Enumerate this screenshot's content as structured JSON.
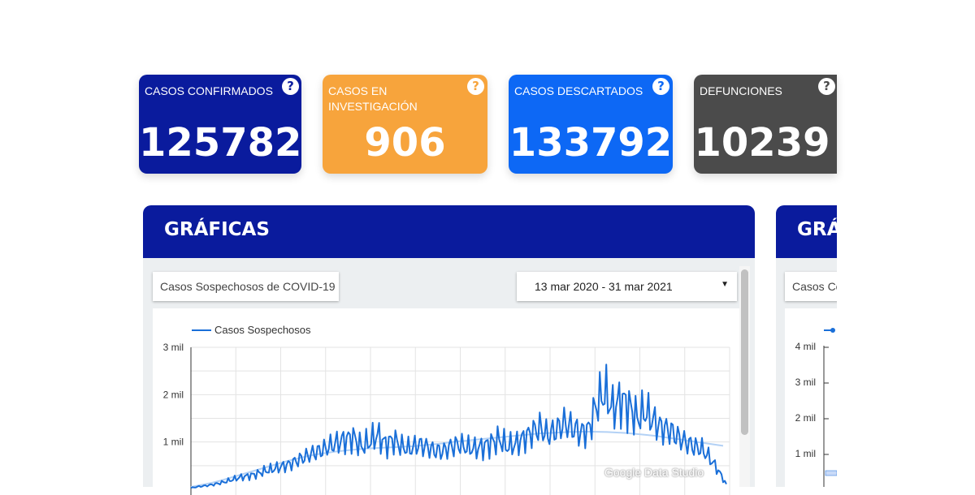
{
  "cards": [
    {
      "label": "CASOS CONFIRMADOS",
      "value": "125782",
      "color": "#0a1b9d",
      "help": "?"
    },
    {
      "label": "CASOS EN INVESTIGACIÓN",
      "value": "906",
      "color": "#f7a43c",
      "help": "?"
    },
    {
      "label": "CASOS DESCARTADOS",
      "value": "133792",
      "color": "#0d68f5",
      "help": "?"
    },
    {
      "label": "DEFUNCIONES",
      "value": "10239",
      "color": "#4b4b4b",
      "help": "?"
    }
  ],
  "panel1": {
    "title": "GRÁFICAS",
    "metric_selector": "Casos Sospechosos de COVID-19",
    "date_range": "13 mar 2020 - 31 mar 2021",
    "legend": "Casos Sospechosos",
    "watermark": "Google Data Studio",
    "series_color": "#1a6fd8"
  },
  "panel2": {
    "title": "GRÁ",
    "metric_selector": "Casos Co",
    "yticks": [
      "4 mil",
      "3 mil",
      "2 mil",
      "1 mil"
    ]
  },
  "chart_data": {
    "type": "line",
    "y_tick_labels": [
      "3 mil",
      "2 mil",
      "1 mil"
    ],
    "ylim": [
      0,
      3000
    ],
    "series": [
      {
        "name": "Casos Sospechosos",
        "values": [
          30,
          60,
          80,
          110,
          150,
          200,
          250,
          280,
          320,
          380,
          420,
          470,
          520,
          600,
          680,
          760,
          820,
          900,
          980,
          1050,
          1100,
          900,
          1000,
          1150,
          950,
          1050,
          900,
          850,
          950,
          900,
          820,
          800,
          900,
          950,
          880,
          860,
          900,
          980,
          1050,
          900,
          950,
          1080,
          1200,
          1300,
          1150,
          1250,
          1400,
          1300,
          1200,
          1250,
          1800,
          2050,
          1700,
          1900,
          1750,
          1500,
          1650,
          1450,
          1300,
          1250,
          1100,
          1000,
          900,
          850,
          650,
          400,
          100
        ]
      }
    ],
    "trend": [
      50,
      90,
      130,
      180,
      240,
      300,
      360,
      420,
      480,
      540,
      600,
      650,
      700,
      740,
      770,
      800,
      820,
      840,
      860,
      870,
      880,
      890,
      900,
      910,
      930,
      950,
      970,
      1000,
      1020,
      1040,
      1060,
      1080,
      1100,
      1120,
      1140,
      1160,
      1180,
      1190,
      1200,
      1210,
      1215,
      1220,
      1215,
      1210,
      1200,
      1190,
      1170,
      1150,
      1130,
      1100,
      1070,
      1040,
      1010,
      980,
      950,
      920
    ]
  }
}
